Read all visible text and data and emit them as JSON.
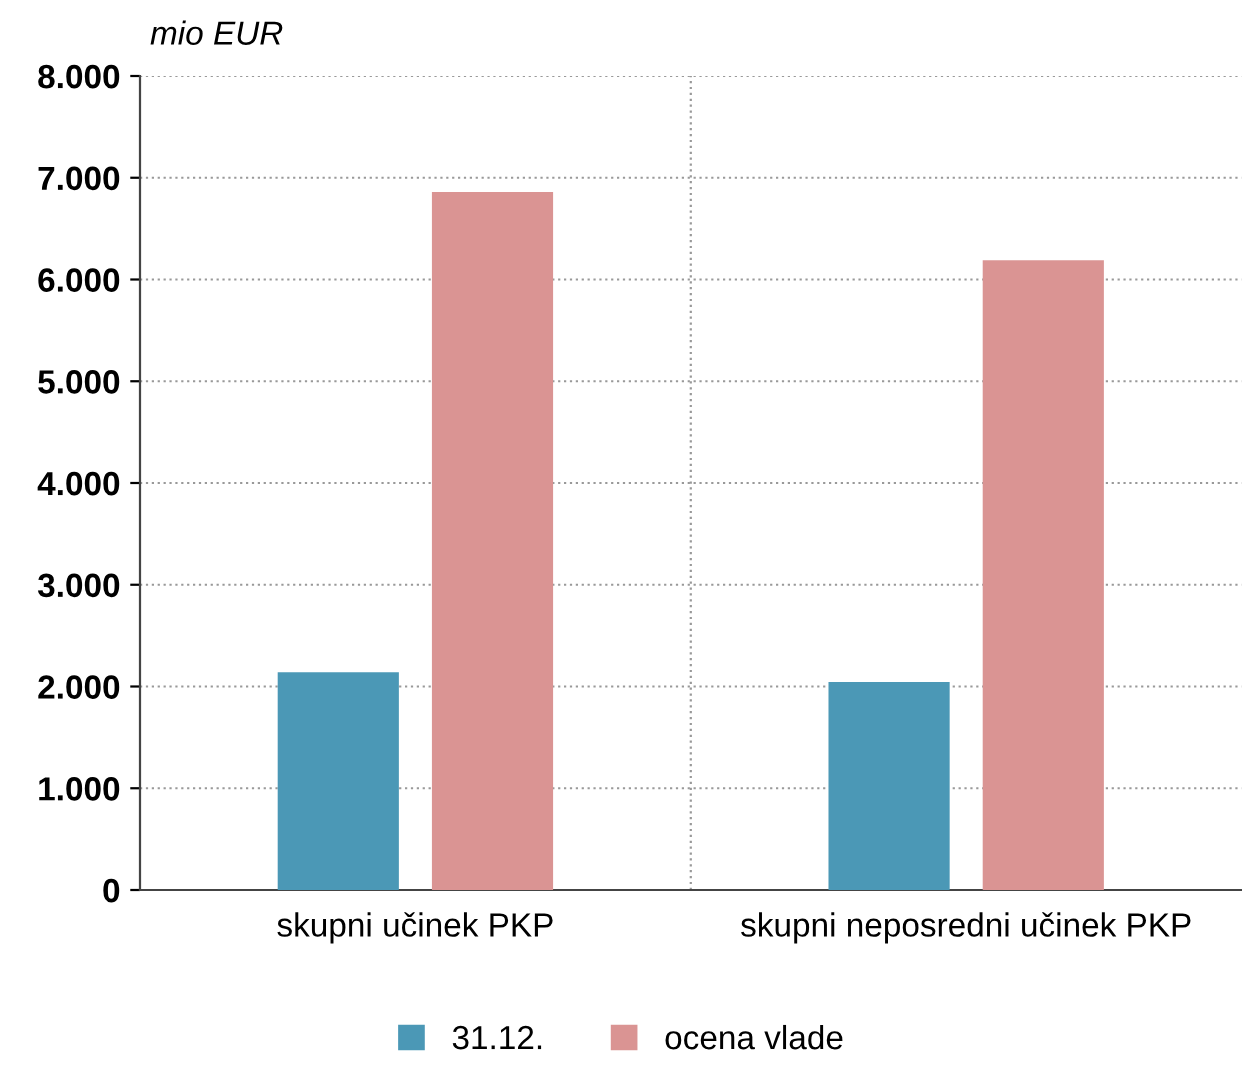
{
  "chart_data": {
    "type": "bar",
    "ylabel": "mio EUR",
    "categories": [
      "skupni učinek PKP",
      "skupni neposredni učinek PKP"
    ],
    "series": [
      {
        "name": "31.12.",
        "color": "#4b98b6",
        "values": [
          2140,
          2045
        ]
      },
      {
        "name": "ocena vlade",
        "color": "#da9493",
        "values": [
          6860,
          6190
        ]
      }
    ],
    "ylim": [
      0,
      8000
    ],
    "yticks": [
      {
        "value": 0,
        "label": "0"
      },
      {
        "value": 1000,
        "label": "1.000"
      },
      {
        "value": 2000,
        "label": "2.000"
      },
      {
        "value": 3000,
        "label": "3.000"
      },
      {
        "value": 4000,
        "label": "4.000"
      },
      {
        "value": 5000,
        "label": "5.000"
      },
      {
        "value": 6000,
        "label": "6.000"
      },
      {
        "value": 7000,
        "label": "7.000"
      },
      {
        "value": 8000,
        "label": "8.000"
      }
    ],
    "grid": true,
    "legend": "bottom"
  }
}
